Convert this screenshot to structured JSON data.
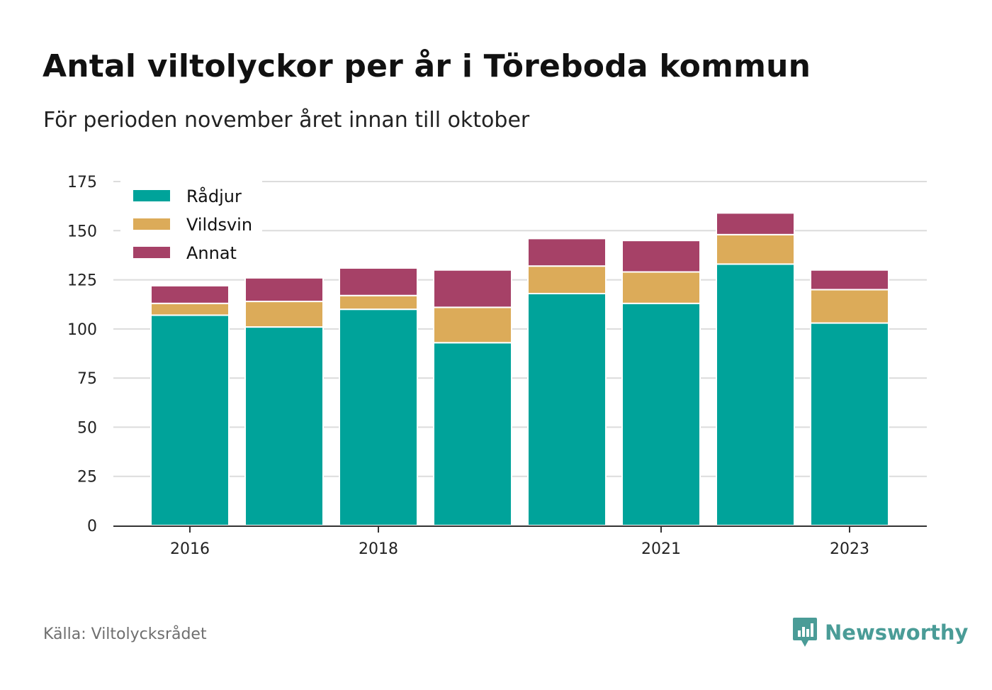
{
  "title": "Antal viltolyckor per år i Töreboda kommun",
  "subtitle": "För perioden november året innan till oktober",
  "source": "Källa: Viltolycksrådet",
  "brand": {
    "name": "Newsworthy",
    "icon": "newsworthy-logo-icon",
    "color": "#4a9c97"
  },
  "chart_data": {
    "type": "bar",
    "stacked": true,
    "categories": [
      "2016",
      "2017",
      "2018",
      "2019",
      "2020",
      "2021",
      "2022",
      "2023"
    ],
    "x_tick_labels": [
      "2016",
      "2018",
      "2021",
      "2023"
    ],
    "series": [
      {
        "name": "Rådjur",
        "color": "#00a39a",
        "values": [
          107,
          101,
          110,
          93,
          118,
          113,
          133,
          103
        ]
      },
      {
        "name": "Vildsvin",
        "color": "#dcab59",
        "values": [
          6,
          13,
          7,
          18,
          14,
          16,
          15,
          17
        ]
      },
      {
        "name": "Annat",
        "color": "#a64167",
        "values": [
          9,
          12,
          14,
          19,
          14,
          16,
          11,
          10
        ]
      }
    ],
    "ylim": [
      0,
      175
    ],
    "y_ticks": [
      0,
      25,
      50,
      75,
      100,
      125,
      150,
      175
    ],
    "xlabel": "",
    "ylabel": "",
    "grid": true,
    "legend": "top-left"
  }
}
